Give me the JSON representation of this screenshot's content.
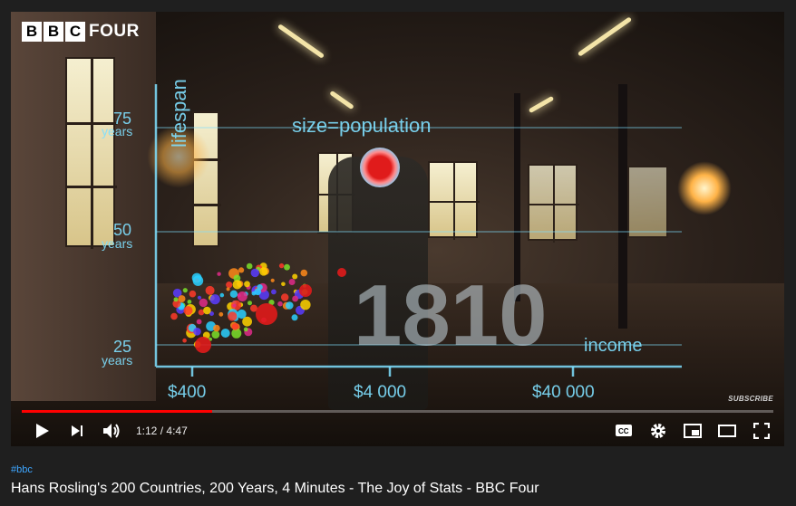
{
  "channel_logo": {
    "letters": [
      "B",
      "B",
      "C"
    ],
    "word": "FOUR"
  },
  "overlay": {
    "size_label": "size=population",
    "y_axis_label": "lifespan",
    "y_ticks": [
      {
        "value": "75",
        "unit": "years"
      },
      {
        "value": "50",
        "unit": "years"
      },
      {
        "value": "25",
        "unit": "years"
      }
    ],
    "x_ticks": [
      "$400",
      "$4 000",
      "$40 000"
    ],
    "x_axis_label": "income",
    "year": "1810"
  },
  "watermark": "SUBSCRIBE",
  "player": {
    "progress_fraction": 0.253,
    "current_time": "1:12",
    "duration": "4:47",
    "time_separator": "/",
    "icons": [
      "play-icon",
      "next-icon",
      "volume-icon",
      "captions-icon",
      "settings-icon",
      "miniplayer-icon",
      "theater-icon",
      "fullscreen-icon"
    ],
    "accent_color": "#ff0000"
  },
  "video": {
    "hashtag": "#bbc",
    "title": "Hans Rosling's 200 Countries, 200 Years, 4 Minutes - The Joy of Stats - BBC Four"
  }
}
